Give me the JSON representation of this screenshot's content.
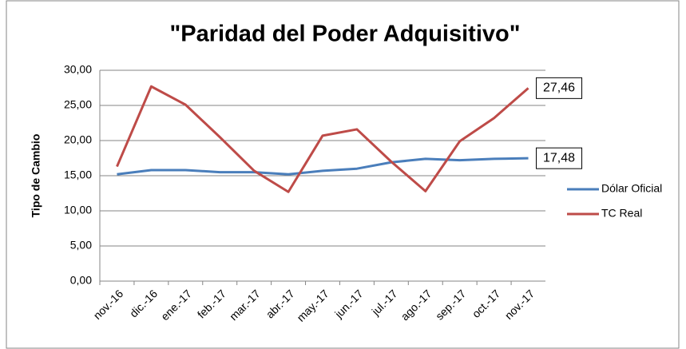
{
  "chart_data": {
    "type": "line",
    "title": "\"Paridad del Poder Adquisitivo\"",
    "y_label": "Tipo de Cambio",
    "categories": [
      "nov.-16",
      "dic.-16",
      "ene.-17",
      "feb.-17",
      "mar.-17",
      "abr.-17",
      "may.-17",
      "jun.-17",
      "jul.-17",
      "ago.-17",
      "sep.-17",
      "oct.-17",
      "nov.-17"
    ],
    "series": [
      {
        "name": "Dólar Oficial",
        "color": "#4a7ebb",
        "values": [
          15.2,
          15.8,
          15.8,
          15.5,
          15.5,
          15.2,
          15.7,
          16.0,
          16.9,
          17.4,
          17.2,
          17.4,
          17.48
        ],
        "value_labels": [
          null,
          null,
          null,
          null,
          null,
          null,
          null,
          null,
          null,
          null,
          null,
          null,
          "17,48"
        ]
      },
      {
        "name": "TC Real",
        "color": "#be4b48",
        "values": [
          16.3,
          27.7,
          25.1,
          20.5,
          15.7,
          12.7,
          20.7,
          21.6,
          17.0,
          12.8,
          19.9,
          23.2,
          27.46
        ],
        "value_labels": [
          null,
          null,
          null,
          null,
          null,
          null,
          null,
          null,
          null,
          null,
          null,
          null,
          "27,46"
        ]
      }
    ],
    "ylim": [
      0,
      30
    ],
    "yticks": [
      {
        "value": 0,
        "label": "0,00"
      },
      {
        "value": 5,
        "label": "5,00"
      },
      {
        "value": 10,
        "label": "10,00"
      },
      {
        "value": 15,
        "label": "15,00"
      },
      {
        "value": 20,
        "label": "20,00"
      },
      {
        "value": 25,
        "label": "25,00"
      },
      {
        "value": 30,
        "label": "30,00"
      }
    ],
    "grid": true,
    "legend": "right"
  }
}
